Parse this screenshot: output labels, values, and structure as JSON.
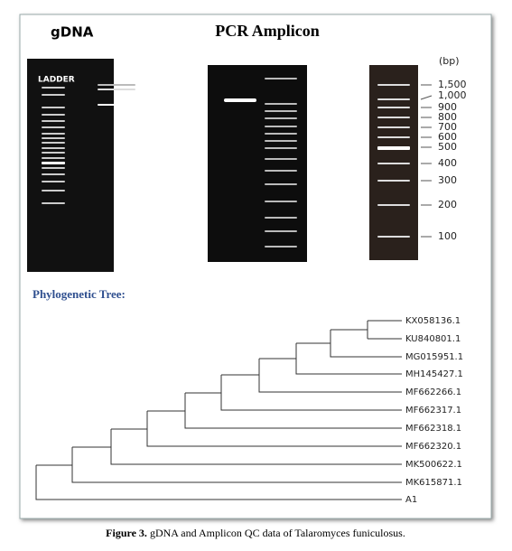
{
  "gdna": {
    "title": "gDNA",
    "ladder_label": "LADDER"
  },
  "pcr": {
    "title": "PCR  Amplicon"
  },
  "ladder": {
    "unit": "(bp)",
    "labels": [
      "1,500",
      "1,000",
      "900",
      "800",
      "700",
      "600",
      "500",
      "400",
      "300",
      "200",
      "100"
    ]
  },
  "tree": {
    "title": "Phylogenetic Tree:",
    "leaves": [
      "KX058136.1",
      "KU840801.1",
      "MG015951.1",
      "MH145427.1",
      "MF662266.1",
      "MF662317.1",
      "MF662318.1",
      "MF662320.1",
      "MK500622.1",
      "MK615871.1",
      "A1"
    ]
  },
  "caption": {
    "label": "Figure 3.",
    "text": "gDNA and Amplicon QC data of Talaromyces funiculosus."
  }
}
